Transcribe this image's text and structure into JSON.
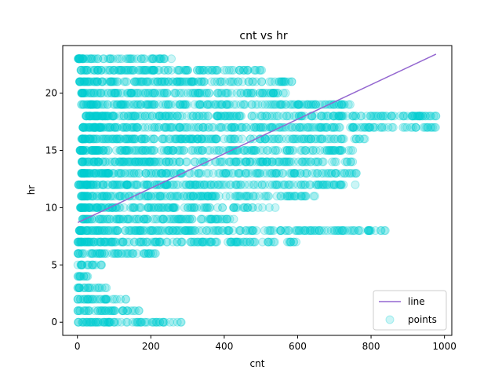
{
  "chart_data": {
    "type": "scatter",
    "title": "cnt vs hr",
    "xlabel": "cnt",
    "ylabel": "hr",
    "xlim": [
      -40,
      1020
    ],
    "ylim": [
      -1.15,
      24.15
    ],
    "xticks": [
      0,
      200,
      400,
      600,
      800,
      1000
    ],
    "yticks": [
      0,
      5,
      10,
      15,
      20
    ],
    "grid": false,
    "legend": {
      "placement": "bottom-right",
      "entries": [
        "line",
        "points"
      ]
    },
    "colors": {
      "line": "#9467d0",
      "points": "#00ced1"
    },
    "line": {
      "name": "line",
      "x": [
        1,
        977
      ],
      "y": [
        8.7,
        23.4
      ]
    },
    "points": {
      "name": "points",
      "hour_ranges": [
        {
          "hr": 0,
          "min": 2,
          "max": 283
        },
        {
          "hr": 1,
          "min": 1,
          "max": 168
        },
        {
          "hr": 2,
          "min": 1,
          "max": 132
        },
        {
          "hr": 3,
          "min": 1,
          "max": 79
        },
        {
          "hr": 4,
          "min": 1,
          "max": 28
        },
        {
          "hr": 5,
          "min": 1,
          "max": 66
        },
        {
          "hr": 6,
          "min": 1,
          "max": 213
        },
        {
          "hr": 7,
          "min": 1,
          "max": 596
        },
        {
          "hr": 8,
          "min": 5,
          "max": 839
        },
        {
          "hr": 9,
          "min": 14,
          "max": 426
        },
        {
          "hr": 10,
          "min": 8,
          "max": 539
        },
        {
          "hr": 11,
          "min": 10,
          "max": 647
        },
        {
          "hr": 12,
          "min": 3,
          "max": 757
        },
        {
          "hr": 13,
          "min": 11,
          "max": 760
        },
        {
          "hr": 14,
          "min": 12,
          "max": 750
        },
        {
          "hr": 15,
          "min": 7,
          "max": 750
        },
        {
          "hr": 16,
          "min": 11,
          "max": 783
        },
        {
          "hr": 17,
          "min": 15,
          "max": 976
        },
        {
          "hr": 18,
          "min": 23,
          "max": 977
        },
        {
          "hr": 19,
          "min": 11,
          "max": 743
        },
        {
          "hr": 20,
          "min": 11,
          "max": 567
        },
        {
          "hr": 21,
          "min": 6,
          "max": 584
        },
        {
          "hr": 22,
          "min": 9,
          "max": 502
        },
        {
          "hr": 23,
          "min": 2,
          "max": 256
        }
      ]
    }
  }
}
